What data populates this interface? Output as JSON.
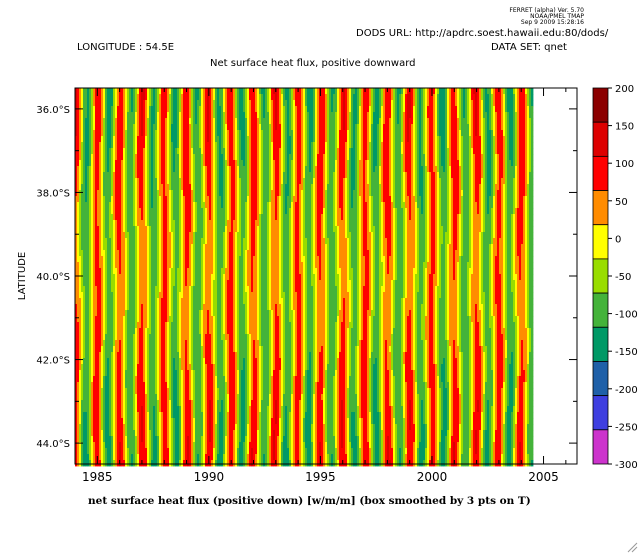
{
  "header": {
    "ferret_lines": [
      "FERRET (alpha) Ver. 5.70",
      "NOAA/PMEL TMAP",
      "Sep 9 2009 15:28:16"
    ],
    "dods_url": "DODS URL: http://apdrc.soest.hawaii.edu:80/dods/",
    "longitude": "LONGITUDE : 54.5E",
    "dataset": "DATA SET: qnet"
  },
  "chart_data": {
    "type": "heatmap",
    "title": "Net surface heat flux, positive downward",
    "xlabel": "net surface heat flux (positive down) [w/m/m] (box smoothed by 3 pts on T)",
    "ylabel": "LATITUDE",
    "x_ticks": [
      "1985",
      "1990",
      "1995",
      "2000",
      "2005"
    ],
    "x_tick_values": [
      1985,
      1990,
      1995,
      2000,
      2005
    ],
    "xlim": [
      1984.0,
      2006.5
    ],
    "data_x_range": [
      1984.0,
      2004.5
    ],
    "y_ticks": [
      "36.0°S",
      "38.0°S",
      "40.0°S",
      "42.0°S",
      "44.0°S"
    ],
    "y_tick_values": [
      -36,
      -38,
      -40,
      -42,
      -44
    ],
    "ylim": [
      -35.5,
      -44.5
    ],
    "value_range": [
      -300,
      200
    ],
    "contour_levels": [
      -300,
      -250,
      -200,
      -150,
      -100,
      -50,
      0,
      50,
      100,
      150,
      200
    ],
    "colorbar_labels": [
      "200",
      "150",
      "100",
      "50",
      "0",
      "-50",
      "-100",
      "-150",
      "-200",
      "-250",
      "-300"
    ],
    "colorbar_colors": [
      "#8b0000",
      "#dd0000",
      "#ff0000",
      "#ff8c00",
      "#ffff00",
      "#99dd00",
      "#44b33a",
      "#009966",
      "#1f60a8",
      "#3f3fe0",
      "#cc33cc"
    ],
    "cycle_period_years": 1,
    "summer_peak_value": 150,
    "winter_trough_value": -120
  }
}
